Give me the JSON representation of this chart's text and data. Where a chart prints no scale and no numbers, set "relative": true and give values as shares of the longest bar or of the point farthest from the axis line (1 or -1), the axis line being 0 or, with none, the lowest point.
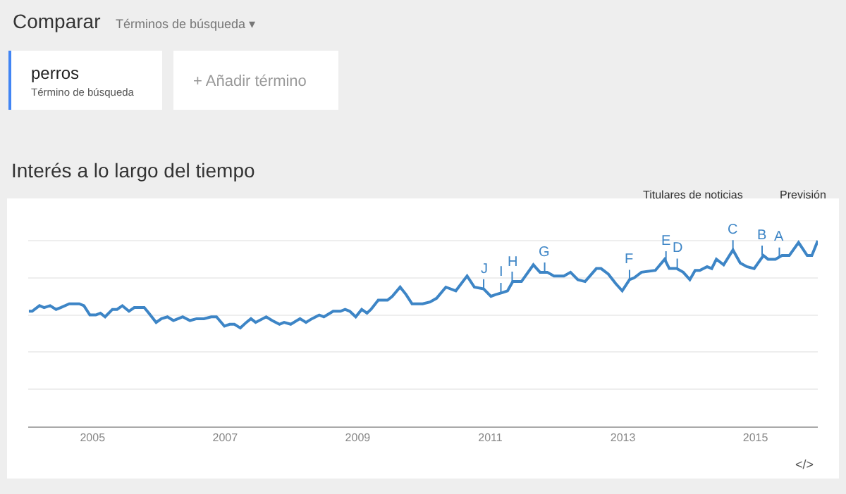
{
  "chart_data": {
    "type": "line",
    "relative": true,
    "title": "Interés a lo largo del tiempo",
    "annotations": [
      "Comparar",
      "Términos de búsqueda ▾",
      "perros",
      "Término de búsqueda",
      "+ Añadir término",
      "Titulares de noticias",
      "Previsión",
      "</>",
      {
        "text": "J",
        "x": 2010.9,
        "y": 0.74
      },
      {
        "text": "I",
        "x": 2011.16,
        "y": 0.72
      },
      {
        "text": "H",
        "x": 2011.33,
        "y": 0.78
      },
      {
        "text": "G",
        "x": 2011.82,
        "y": 0.83
      },
      {
        "text": "F",
        "x": 2013.1,
        "y": 0.79
      },
      {
        "text": "E",
        "x": 2013.65,
        "y": 0.89
      },
      {
        "text": "D",
        "x": 2013.82,
        "y": 0.85
      },
      {
        "text": "C",
        "x": 2014.66,
        "y": 0.95
      },
      {
        "text": "B",
        "x": 2015.1,
        "y": 0.92
      },
      {
        "text": "A",
        "x": 2015.36,
        "y": 0.91
      }
    ],
    "xlim": [
      2004.03,
      2015.94
    ],
    "xticks": [
      2005,
      2007,
      2009,
      2011,
      2013,
      2015
    ],
    "grid": "y",
    "marker": "none",
    "line_style": "solid",
    "series": [
      {
        "color": "#3d85c6",
        "x": [
          2004.04,
          2004.09,
          2004.2,
          2004.27,
          2004.36,
          2004.45,
          2004.52,
          2004.65,
          2004.8,
          2004.87,
          2004.96,
          2005.05,
          2005.12,
          2005.19,
          2005.3,
          2005.37,
          2005.45,
          2005.55,
          2005.63,
          2005.78,
          2005.85,
          2005.96,
          2006.04,
          2006.13,
          2006.22,
          2006.36,
          2006.47,
          2006.57,
          2006.68,
          2006.79,
          2006.87,
          2006.99,
          2007.07,
          2007.14,
          2007.23,
          2007.32,
          2007.39,
          2007.46,
          2007.62,
          2007.71,
          2007.82,
          2007.89,
          2007.99,
          2008.13,
          2008.22,
          2008.31,
          2008.42,
          2008.49,
          2008.63,
          2008.74,
          2008.81,
          2008.88,
          2008.97,
          2009.06,
          2009.14,
          2009.2,
          2009.31,
          2009.45,
          2009.52,
          2009.64,
          2009.73,
          2009.82,
          2009.98,
          2010.09,
          2010.19,
          2010.33,
          2010.48,
          2010.65,
          2010.76,
          2010.9,
          2011.01,
          2011.08,
          2011.18,
          2011.26,
          2011.34,
          2011.47,
          2011.65,
          2011.75,
          2011.86,
          2011.96,
          2012.11,
          2012.21,
          2012.32,
          2012.43,
          2012.6,
          2012.67,
          2012.78,
          2012.89,
          2012.99,
          2013.1,
          2013.17,
          2013.28,
          2013.49,
          2013.63,
          2013.7,
          2013.81,
          2013.91,
          2014.01,
          2014.09,
          2014.16,
          2014.27,
          2014.34,
          2014.41,
          2014.52,
          2014.66,
          2014.77,
          2014.87,
          2014.98,
          2015.12,
          2015.19,
          2015.3,
          2015.4,
          2015.51,
          2015.65,
          2015.78,
          2015.85,
          2015.94
        ],
        "values": [
          0.62,
          0.62,
          0.65,
          0.64,
          0.65,
          0.63,
          0.64,
          0.66,
          0.66,
          0.65,
          0.6,
          0.6,
          0.61,
          0.59,
          0.63,
          0.63,
          0.65,
          0.62,
          0.64,
          0.64,
          0.61,
          0.56,
          0.58,
          0.59,
          0.57,
          0.59,
          0.57,
          0.58,
          0.58,
          0.59,
          0.59,
          0.54,
          0.55,
          0.55,
          0.53,
          0.56,
          0.58,
          0.56,
          0.59,
          0.57,
          0.55,
          0.56,
          0.55,
          0.58,
          0.56,
          0.58,
          0.6,
          0.59,
          0.62,
          0.62,
          0.63,
          0.62,
          0.59,
          0.63,
          0.61,
          0.63,
          0.68,
          0.68,
          0.7,
          0.75,
          0.71,
          0.66,
          0.66,
          0.67,
          0.69,
          0.75,
          0.73,
          0.81,
          0.75,
          0.74,
          0.7,
          0.71,
          0.72,
          0.73,
          0.78,
          0.78,
          0.87,
          0.83,
          0.83,
          0.81,
          0.81,
          0.83,
          0.79,
          0.78,
          0.85,
          0.85,
          0.82,
          0.77,
          0.73,
          0.79,
          0.8,
          0.83,
          0.84,
          0.9,
          0.85,
          0.85,
          0.83,
          0.79,
          0.84,
          0.84,
          0.86,
          0.85,
          0.9,
          0.87,
          0.95,
          0.88,
          0.86,
          0.85,
          0.92,
          0.9,
          0.9,
          0.92,
          0.92,
          0.99,
          0.92,
          0.92,
          1
        ]
      }
    ]
  }
}
